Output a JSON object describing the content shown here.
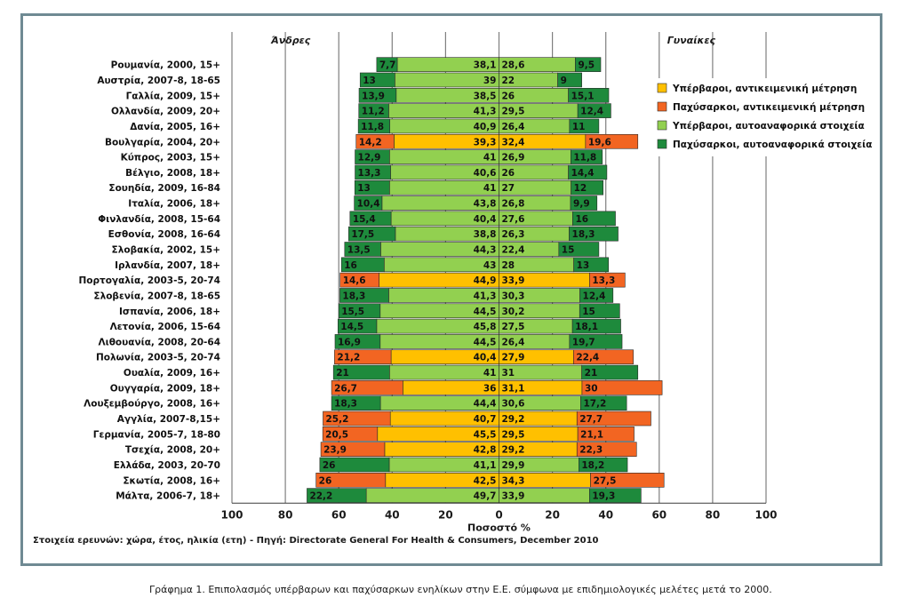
{
  "figure": {
    "caption_label": "Γράφημα 1.",
    "caption_text": "Επιπολασμός υπέρβαρων και παχύσαρκων ενηλίκων στην Ε.Ε. σύμφωνα με επιδημιολογικές μελέτες μετά το 2000.",
    "source_note": "Στοιχεία ερευνών: χώρα, έτος, ηλικία (ετη) - Πηγή: Directorate General For Health & Consumers, December 2010"
  },
  "chart_data": {
    "type": "bar",
    "subtype": "population-pyramid-stacked",
    "men_label": "Άνδρες",
    "women_label": "Γυναίκες",
    "xlabel": "Ποσοστό %",
    "xlim": [
      -100,
      100
    ],
    "xticks": [
      -100,
      -80,
      -60,
      -40,
      -20,
      0,
      20,
      40,
      60,
      80,
      100
    ],
    "xtick_labels": [
      "100",
      "80",
      "60",
      "40",
      "20",
      "0",
      "20",
      "40",
      "60",
      "80",
      "100"
    ],
    "grid": "vertical",
    "legend_position": "right",
    "legend": [
      {
        "key": "over_measured",
        "label": "Υπέρβαροι, αντικειμενική μέτρηση",
        "color": "#ffc000"
      },
      {
        "key": "obese_measured",
        "label": "Παχύσαρκοι, αντικειμενική μέτρηση",
        "color": "#f26522"
      },
      {
        "key": "over_self",
        "label": "Υπέρβαροι, αυτοαναφορικά στοιχεία",
        "color": "#92d050"
      },
      {
        "key": "obese_self",
        "label": "Παχύσαρκοι, αυτοαναφορικά στοιχεία",
        "color": "#1e8a3c"
      }
    ],
    "colors": {
      "over_measured": "#ffc000",
      "obese_measured": "#f26522",
      "over_self": "#92d050",
      "obese_self": "#1e8a3c"
    },
    "rows": [
      {
        "label": "Ρουμανία, 2000, 15+",
        "method": "self",
        "men_over": 38.1,
        "men_obese": 7.7,
        "women_over": 28.6,
        "women_obese": 9.5,
        "men_over_text": "38,1",
        "men_obese_text": "7,7",
        "women_over_text": "28,6",
        "women_obese_text": "9,5"
      },
      {
        "label": "Αυστρία, 2007-8, 18-65",
        "method": "self",
        "men_over": 39,
        "men_obese": 13,
        "women_over": 22,
        "women_obese": 9,
        "men_over_text": "39",
        "men_obese_text": "13",
        "women_over_text": "22",
        "women_obese_text": "9"
      },
      {
        "label": "Γαλλία, 2009, 15+",
        "method": "self",
        "men_over": 38.5,
        "men_obese": 13.9,
        "women_over": 26,
        "women_obese": 15.1,
        "men_over_text": "38,5",
        "men_obese_text": "13,9",
        "women_over_text": "26",
        "women_obese_text": "15,1"
      },
      {
        "label": "Ολλανδία, 2009, 20+",
        "method": "self",
        "men_over": 41.3,
        "men_obese": 11.2,
        "women_over": 29.5,
        "women_obese": 12.4,
        "men_over_text": "41,3",
        "men_obese_text": "11,2",
        "women_over_text": "29,5",
        "women_obese_text": "12,4"
      },
      {
        "label": "Δανία, 2005, 16+",
        "method": "self",
        "men_over": 40.9,
        "men_obese": 11.8,
        "women_over": 26.4,
        "women_obese": 11,
        "men_over_text": "40,9",
        "men_obese_text": "11,8",
        "women_over_text": "26,4",
        "women_obese_text": "11"
      },
      {
        "label": "Βουλγαρία, 2004, 20+",
        "method": "measured",
        "men_over": 39.3,
        "men_obese": 14.2,
        "women_over": 32.4,
        "women_obese": 19.6,
        "men_over_text": "39,3",
        "men_obese_text": "14,2",
        "women_over_text": "32,4",
        "women_obese_text": "19,6"
      },
      {
        "label": "Κύπρος, 2003, 15+",
        "method": "self",
        "men_over": 41,
        "men_obese": 12.9,
        "women_over": 26.9,
        "women_obese": 11.8,
        "men_over_text": "41",
        "men_obese_text": "12,9",
        "women_over_text": "26,9",
        "women_obese_text": "11,8"
      },
      {
        "label": "Βέλγιο, 2008, 18+",
        "method": "self",
        "men_over": 40.6,
        "men_obese": 13.3,
        "women_over": 26,
        "women_obese": 14.4,
        "men_over_text": "40,6",
        "men_obese_text": "13,3",
        "women_over_text": "26",
        "women_obese_text": "14,4"
      },
      {
        "label": "Σουηδία, 2009, 16-84",
        "method": "self",
        "men_over": 41,
        "men_obese": 13,
        "women_over": 27,
        "women_obese": 12,
        "men_over_text": "41",
        "men_obese_text": "13",
        "women_over_text": "27",
        "women_obese_text": "12"
      },
      {
        "label": "Ιταλία, 2006, 18+",
        "method": "self",
        "men_over": 43.8,
        "men_obese": 10.4,
        "women_over": 26.8,
        "women_obese": 9.9,
        "men_over_text": "43,8",
        "men_obese_text": "10,4",
        "women_over_text": "26,8",
        "women_obese_text": "9,9"
      },
      {
        "label": "Φινλανδία, 2008, 15-64",
        "method": "self",
        "men_over": 40.4,
        "men_obese": 15.4,
        "women_over": 27.6,
        "women_obese": 16,
        "men_over_text": "40,4",
        "men_obese_text": "15,4",
        "women_over_text": "27,6",
        "women_obese_text": "16"
      },
      {
        "label": "Εσθονία, 2008, 16-64",
        "method": "self",
        "men_over": 38.8,
        "men_obese": 17.5,
        "women_over": 26.3,
        "women_obese": 18.3,
        "men_over_text": "38,8",
        "men_obese_text": "17,5",
        "women_over_text": "26,3",
        "women_obese_text": "18,3"
      },
      {
        "label": "Σλοβακία, 2002, 15+",
        "method": "self",
        "men_over": 44.3,
        "men_obese": 13.5,
        "women_over": 22.4,
        "women_obese": 15,
        "men_over_text": "44,3",
        "men_obese_text": "13,5",
        "women_over_text": "22,4",
        "women_obese_text": "15"
      },
      {
        "label": "Ιρλανδία, 2007, 18+",
        "method": "self",
        "men_over": 43,
        "men_obese": 16,
        "women_over": 28,
        "women_obese": 13,
        "men_over_text": "43",
        "men_obese_text": "16",
        "women_over_text": "28",
        "women_obese_text": "13"
      },
      {
        "label": "Πορτογαλία, 2003-5, 20-74",
        "method": "measured",
        "men_over": 44.9,
        "men_obese": 14.6,
        "women_over": 33.9,
        "women_obese": 13.3,
        "men_over_text": "44,9",
        "men_obese_text": "14,6",
        "women_over_text": "33,9",
        "women_obese_text": "13,3"
      },
      {
        "label": "Σλοβενία, 2007-8, 18-65",
        "method": "self",
        "men_over": 41.3,
        "men_obese": 18.3,
        "women_over": 30.3,
        "women_obese": 12.4,
        "men_over_text": "41,3",
        "men_obese_text": "18,3",
        "women_over_text": "30,3",
        "women_obese_text": "12,4"
      },
      {
        "label": "Ισπανία, 2006, 18+",
        "method": "self",
        "men_over": 44.5,
        "men_obese": 15.5,
        "women_over": 30.2,
        "women_obese": 15,
        "men_over_text": "44,5",
        "men_obese_text": "15,5",
        "women_over_text": "30,2",
        "women_obese_text": "15"
      },
      {
        "label": "Λετονία, 2006, 15-64",
        "method": "self",
        "men_over": 45.8,
        "men_obese": 14.5,
        "women_over": 27.5,
        "women_obese": 18.1,
        "men_over_text": "45,8",
        "men_obese_text": "14,5",
        "women_over_text": "27,5",
        "women_obese_text": "18,1"
      },
      {
        "label": "Λιθουανία, 2008, 20-64",
        "method": "self",
        "men_over": 44.5,
        "men_obese": 16.9,
        "women_over": 26.4,
        "women_obese": 19.7,
        "men_over_text": "44,5",
        "men_obese_text": "16,9",
        "women_over_text": "26,4",
        "women_obese_text": "19,7"
      },
      {
        "label": "Πολωνία, 2003-5, 20-74",
        "method": "measured",
        "men_over": 40.4,
        "men_obese": 21.2,
        "women_over": 27.9,
        "women_obese": 22.4,
        "men_over_text": "40,4",
        "men_obese_text": "21,2",
        "women_over_text": "27,9",
        "women_obese_text": "22,4"
      },
      {
        "label": "Ουαλία, 2009, 16+",
        "method": "self",
        "men_over": 41,
        "men_obese": 21,
        "women_over": 31,
        "women_obese": 21,
        "men_over_text": "41",
        "men_obese_text": "21",
        "women_over_text": "31",
        "women_obese_text": "21"
      },
      {
        "label": "Ουγγαρία, 2009, 18+",
        "method": "measured",
        "men_over": 36,
        "men_obese": 26.7,
        "women_over": 31.1,
        "women_obese": 30,
        "men_over_text": "36",
        "men_obese_text": "26,7",
        "women_over_text": "31,1",
        "women_obese_text": "30"
      },
      {
        "label": "Λουξεμβούργο, 2008, 16+",
        "method": "self",
        "men_over": 44.4,
        "men_obese": 18.3,
        "women_over": 30.6,
        "women_obese": 17.2,
        "men_over_text": "44,4",
        "men_obese_text": "18,3",
        "women_over_text": "30,6",
        "women_obese_text": "17,2"
      },
      {
        "label": "Αγγλία, 2007-8,15+",
        "method": "measured",
        "men_over": 40.7,
        "men_obese": 25.2,
        "women_over": 29.2,
        "women_obese": 27.7,
        "men_over_text": "40,7",
        "men_obese_text": "25,2",
        "women_over_text": "29,2",
        "women_obese_text": "27,7"
      },
      {
        "label": "Γερμανία, 2005-7, 18-80",
        "method": "measured",
        "men_over": 45.5,
        "men_obese": 20.5,
        "women_over": 29.5,
        "women_obese": 21.1,
        "men_over_text": "45,5",
        "men_obese_text": "20,5",
        "women_over_text": "29,5",
        "women_obese_text": "21,1"
      },
      {
        "label": "Τσεχία, 2008, 20+",
        "method": "measured",
        "men_over": 42.8,
        "men_obese": 23.9,
        "women_over": 29.2,
        "women_obese": 22.3,
        "men_over_text": "42,8",
        "men_obese_text": "23,9",
        "women_over_text": "29,2",
        "women_obese_text": "22,3"
      },
      {
        "label": "Ελλάδα, 2003, 20-70",
        "method": "self",
        "men_over": 41.1,
        "men_obese": 26,
        "women_over": 29.9,
        "women_obese": 18.2,
        "men_over_text": "41,1",
        "men_obese_text": "26",
        "women_over_text": "29,9",
        "women_obese_text": "18,2"
      },
      {
        "label": "Σκωτία, 2008, 16+",
        "method": "measured",
        "men_over": 42.5,
        "men_obese": 26,
        "women_over": 34.3,
        "women_obese": 27.5,
        "men_over_text": "42,5",
        "men_obese_text": "26",
        "women_over_text": "34,3",
        "women_obese_text": "27,5"
      },
      {
        "label": "Μάλτα, 2006-7, 18+",
        "method": "self",
        "men_over": 49.7,
        "men_obese": 22.2,
        "women_over": 33.9,
        "women_obese": 19.3,
        "men_over_text": "49,7",
        "men_obese_text": "22,2",
        "women_over_text": "33,9",
        "women_obese_text": "19,3"
      }
    ]
  }
}
